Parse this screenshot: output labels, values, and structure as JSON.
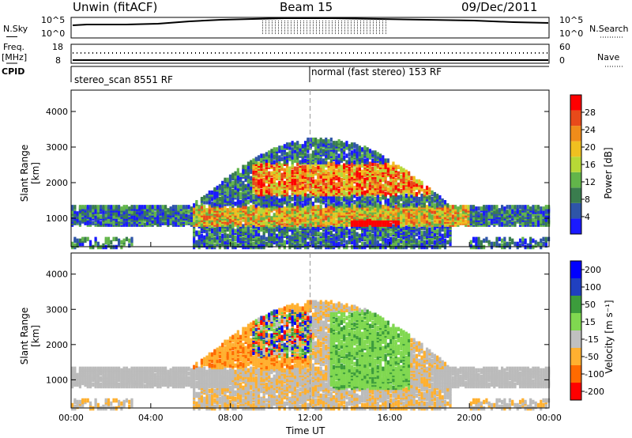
{
  "header": {
    "site": "Unwin (fitACF)",
    "beam": "Beam 15",
    "date": "09/Dec/2011"
  },
  "left_labels": {
    "nsky": "N.Sky",
    "freq": "Freq.",
    "freq_unit": "[MHz]",
    "cpid": "CPID"
  },
  "right_labels": {
    "nsearch": "N.Search",
    "nave": "Nave"
  },
  "noise_axis": {
    "left_top": "10^5",
    "left_bottom": "10^0",
    "right_top": "10^5",
    "right_bottom": "10^0"
  },
  "freq_axis": {
    "left_top": "18",
    "left_bottom": "8",
    "right_top": "60",
    "right_bottom": "0"
  },
  "cpid_segments": [
    {
      "label": "stereo_scan 8551 RF",
      "start_hour": 0
    },
    {
      "label": "normal (fast stereo) 153 RF",
      "start_hour": 12
    }
  ],
  "colors": {
    "power": [
      "#1a1aff",
      "#2e55a8",
      "#3a7d4e",
      "#62b54a",
      "#b7d836",
      "#f0c020",
      "#f08c1a",
      "#e84a1a",
      "#ff0000"
    ],
    "velocity": [
      "#ff0000",
      "#ff6a00",
      "#ffb030",
      "#c0c0c0",
      "#80d850",
      "#3c9c3c",
      "#2040c0",
      "#0000ff"
    ],
    "ground_scatter": "#bbbbbb"
  },
  "chart_data": [
    {
      "type": "heatmap",
      "panel": "power",
      "ylabel": "Slant Range [km]",
      "yticks": [
        "1000",
        "2000",
        "3000",
        "4000"
      ],
      "ylim": [
        200,
        4600
      ],
      "xlim": [
        0,
        24
      ],
      "colorbar_label": "Power [dB]",
      "colorbar_ticks": [
        "4",
        "8",
        "12",
        "16",
        "20",
        "24",
        "28"
      ],
      "colorbar_range": [
        0,
        32
      ]
    },
    {
      "type": "heatmap",
      "panel": "velocity",
      "ylabel": "Slant Range [km]",
      "yticks": [
        "1000",
        "2000",
        "3000",
        "4000"
      ],
      "ylim": [
        200,
        4600
      ],
      "xlim": [
        0,
        24
      ],
      "colorbar_label": "Velocity [m s⁻¹]",
      "colorbar_ticks": [
        "200",
        "100",
        "50",
        "15",
        "-15",
        "-50",
        "-100",
        "-200"
      ]
    }
  ],
  "xaxis": {
    "ticks": [
      "00:00",
      "04:00",
      "08:00",
      "12:00",
      "16:00",
      "20:00",
      "00:00"
    ],
    "label": "Time UT"
  }
}
